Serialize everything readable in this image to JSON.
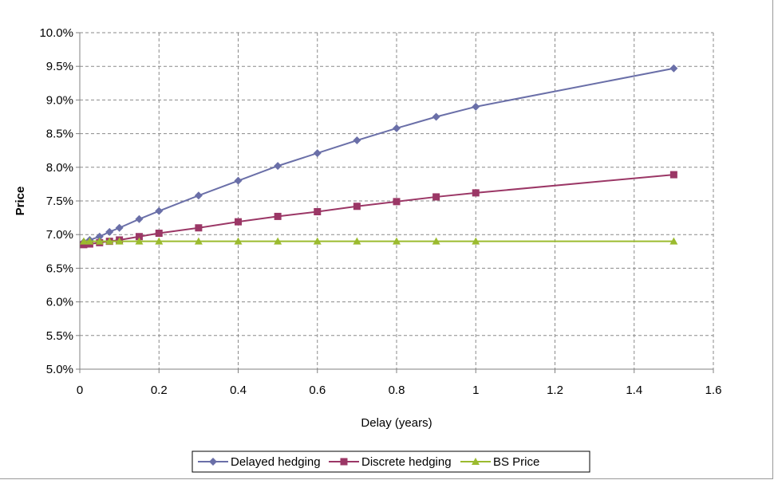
{
  "chart_data": {
    "type": "line",
    "title": "",
    "xlabel": "Delay (years)",
    "ylabel": "Price",
    "xlim": [
      0,
      1.6
    ],
    "ylim": [
      0.05,
      0.1
    ],
    "x_ticks": [
      "0",
      "0.2",
      "0.4",
      "0.6",
      "0.8",
      "1",
      "1.2",
      "1.4",
      "1.6"
    ],
    "y_ticks": [
      "5.0%",
      "5.5%",
      "6.0%",
      "6.5%",
      "7.0%",
      "7.5%",
      "8.0%",
      "8.5%",
      "9.0%",
      "9.5%",
      "10.0%"
    ],
    "grid": true,
    "legend_position": "bottom",
    "x": [
      0.01,
      0.025,
      0.05,
      0.075,
      0.1,
      0.15,
      0.2,
      0.3,
      0.4,
      0.5,
      0.6,
      0.7,
      0.8,
      0.9,
      1.0,
      1.5
    ],
    "series": [
      {
        "name": "Delayed hedging",
        "color": "#6a6fa8",
        "marker": "diamond",
        "values": [
          0.0689,
          0.0692,
          0.0697,
          0.0704,
          0.071,
          0.0723,
          0.0735,
          0.0758,
          0.078,
          0.0802,
          0.0821,
          0.084,
          0.0858,
          0.0875,
          0.089,
          0.0947
        ]
      },
      {
        "name": "Discrete hedging",
        "color": "#9b3766",
        "marker": "square",
        "values": [
          0.0685,
          0.0686,
          0.0688,
          0.069,
          0.0692,
          0.0697,
          0.0702,
          0.071,
          0.0719,
          0.0727,
          0.0734,
          0.0742,
          0.0749,
          0.0756,
          0.0762,
          0.0789
        ]
      },
      {
        "name": "BS Price",
        "color": "#9bbb2f",
        "marker": "triangle",
        "values": [
          0.069,
          0.069,
          0.069,
          0.069,
          0.069,
          0.069,
          0.069,
          0.069,
          0.069,
          0.069,
          0.069,
          0.069,
          0.069,
          0.069,
          0.069,
          0.069
        ]
      }
    ]
  }
}
